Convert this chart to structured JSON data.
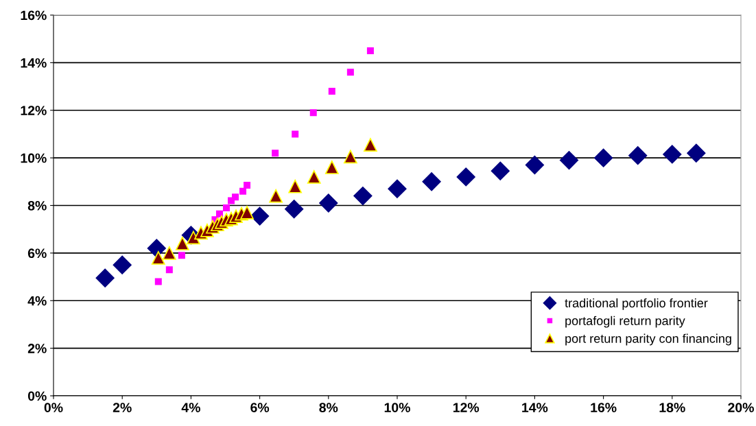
{
  "chart_data": {
    "type": "scatter",
    "xlim": [
      0,
      20
    ],
    "ylim": [
      0,
      16
    ],
    "xticks": [
      {
        "value": 0,
        "label": "0%"
      },
      {
        "value": 2,
        "label": "2%"
      },
      {
        "value": 4,
        "label": "4%"
      },
      {
        "value": 6,
        "label": "6%"
      },
      {
        "value": 8,
        "label": "8%"
      },
      {
        "value": 10,
        "label": "10%"
      },
      {
        "value": 12,
        "label": "12%"
      },
      {
        "value": 14,
        "label": "14%"
      },
      {
        "value": 16,
        "label": "16%"
      },
      {
        "value": 18,
        "label": "18%"
      },
      {
        "value": 20,
        "label": "20%"
      }
    ],
    "yticks": [
      {
        "value": 0,
        "label": "0%"
      },
      {
        "value": 2,
        "label": "2%"
      },
      {
        "value": 4,
        "label": "4%"
      },
      {
        "value": 6,
        "label": "6%"
      },
      {
        "value": 8,
        "label": "8%"
      },
      {
        "value": 10,
        "label": "10%"
      },
      {
        "value": 12,
        "label": "12%"
      },
      {
        "value": 14,
        "label": "14%"
      },
      {
        "value": 16,
        "label": "16%"
      }
    ],
    "grid": "y",
    "legend": "right",
    "series": [
      {
        "name": "traditional portfolio frontier",
        "color": "#000080",
        "marker": "diamond",
        "x": [
          1.5,
          2,
          3,
          4,
          6,
          7,
          8,
          9,
          10,
          11,
          12,
          13,
          14,
          15,
          16,
          17,
          18,
          18.7
        ],
        "values": [
          4.95,
          5.5,
          6.2,
          6.75,
          7.55,
          7.85,
          8.1,
          8.4,
          8.7,
          9.0,
          9.2,
          9.45,
          9.7,
          9.9,
          10.0,
          10.1,
          10.15,
          10.2
        ]
      },
      {
        "name": "portafogli return parity",
        "color": "#ff00ff",
        "marker": "square",
        "x": [
          3.05,
          3.37,
          3.73,
          4.7,
          4.83,
          5.03,
          5.17,
          5.29,
          5.51,
          5.63,
          6.45,
          7.03,
          7.56,
          8.1,
          8.64,
          9.22
        ],
        "values": [
          4.8,
          5.3,
          5.9,
          7.4,
          7.65,
          7.9,
          8.2,
          8.35,
          8.6,
          8.85,
          10.2,
          11.0,
          11.9,
          12.8,
          13.6,
          14.5
        ]
      },
      {
        "name": "port return parity con financing",
        "color": "#800000",
        "marker": "triangle",
        "x": [
          3.05,
          3.37,
          3.75,
          4.07,
          4.29,
          4.47,
          4.63,
          4.77,
          4.89,
          5.03,
          5.17,
          5.31,
          5.47,
          5.63,
          6.47,
          7.03,
          7.58,
          8.1,
          8.64,
          9.22
        ],
        "values": [
          5.8,
          6.0,
          6.4,
          6.65,
          6.85,
          6.95,
          7.1,
          7.2,
          7.3,
          7.4,
          7.45,
          7.55,
          7.65,
          7.7,
          8.4,
          8.8,
          9.2,
          9.6,
          10.05,
          10.55
        ]
      }
    ]
  }
}
